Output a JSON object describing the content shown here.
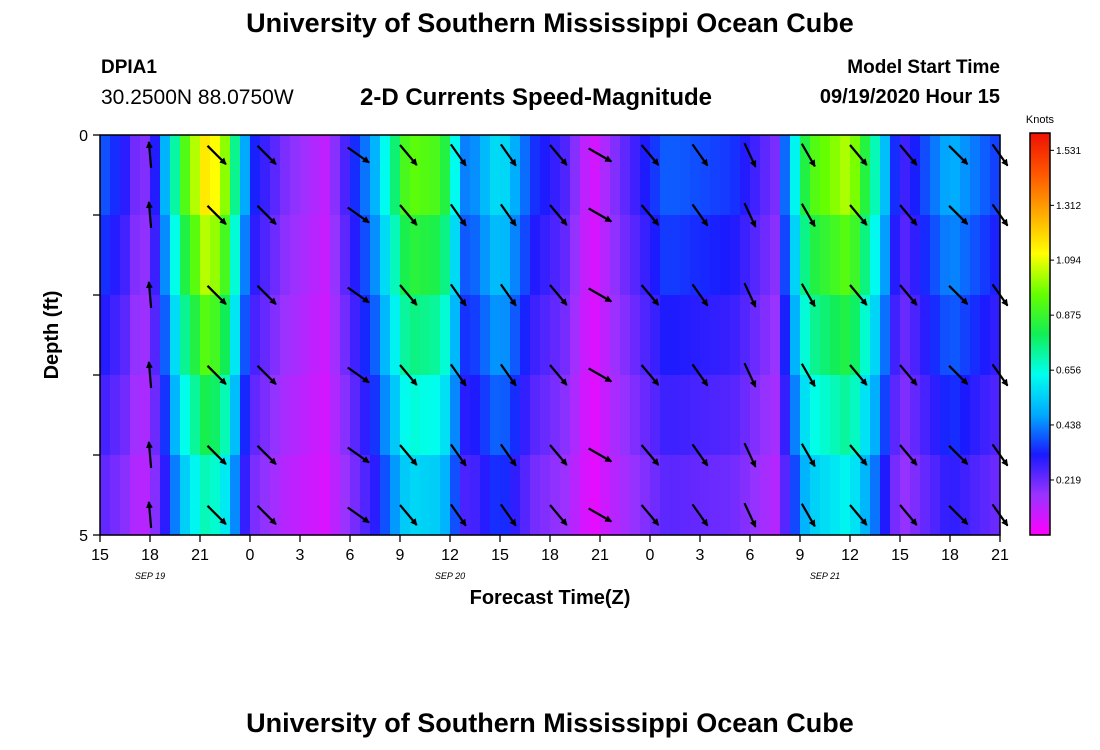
{
  "title": "University of Southern Mississippi Ocean Cube",
  "footer_title": "University of Southern Mississippi Ocean Cube",
  "station": {
    "id": "DPIA1",
    "coords": "30.2500N 88.0750W"
  },
  "subtitle": "2-D Currents Speed-Magnitude",
  "model_start": {
    "label": "Model Start Time",
    "value": "09/19/2020 Hour 15"
  },
  "chart_data": {
    "type": "heatmap",
    "xlabel": "Forecast Time(Z)",
    "ylabel": "Depth (ft)",
    "x_tick_labels": [
      "15",
      "18",
      "21",
      "0",
      "3",
      "6",
      "9",
      "12",
      "15",
      "18",
      "21",
      "0",
      "3",
      "6",
      "9",
      "12",
      "15",
      "18",
      "21"
    ],
    "date_labels": [
      {
        "text": "SEP 19",
        "tick_index": 1
      },
      {
        "text": "SEP 20",
        "tick_index": 7
      },
      {
        "text": "SEP 21",
        "tick_index": 14.5
      }
    ],
    "xlim_hours": [
      0,
      54
    ],
    "ylim_ft": [
      0,
      5
    ],
    "y_tick_labels": [
      {
        "value": 0,
        "label": "0"
      },
      {
        "value": 1,
        "label": ""
      },
      {
        "value": 2,
        "label": ""
      },
      {
        "value": 3,
        "label": ""
      },
      {
        "value": 4,
        "label": ""
      },
      {
        "value": 5,
        "label": "5"
      }
    ],
    "colorbar": {
      "unit": "Knots",
      "tick_labels": [
        "1.531",
        "1.312",
        "1.094",
        "0.875",
        "0.656",
        "0.438",
        "0.219"
      ],
      "vmin": 0.0,
      "vmax": 1.6,
      "stops": [
        "#ff00ff",
        "#9933ff",
        "#1a1aff",
        "#00aaff",
        "#00ffee",
        "#11ee55",
        "#66ff00",
        "#ffff00",
        "#ffaa00",
        "#ff5500",
        "#ee1100"
      ]
    },
    "depth_layers_ft": [
      0.25,
      1.0,
      2.0,
      3.0,
      4.0,
      4.75
    ],
    "speed_profile": [
      {
        "hour": 0.0,
        "speed": 0.4
      },
      {
        "hour": 1.5,
        "speed": 0.3
      },
      {
        "hour": 2.5,
        "speed": 0.15
      },
      {
        "hour": 3.5,
        "speed": 0.35
      },
      {
        "hour": 5.0,
        "speed": 0.9
      },
      {
        "hour": 6.5,
        "speed": 1.2
      },
      {
        "hour": 7.5,
        "speed": 1.0
      },
      {
        "hour": 9.0,
        "speed": 0.35
      },
      {
        "hour": 11.0,
        "speed": 0.2
      },
      {
        "hour": 13.5,
        "speed": 0.1
      },
      {
        "hour": 16.5,
        "speed": 0.5
      },
      {
        "hour": 18.5,
        "speed": 0.95
      },
      {
        "hour": 20.5,
        "speed": 0.9
      },
      {
        "hour": 22.0,
        "speed": 0.4
      },
      {
        "hour": 24.0,
        "speed": 0.6
      },
      {
        "hour": 26.0,
        "speed": 0.35
      },
      {
        "hour": 28.0,
        "speed": 0.25
      },
      {
        "hour": 29.5,
        "speed": 0.05
      },
      {
        "hour": 31.0,
        "speed": 0.2
      },
      {
        "hour": 34.0,
        "speed": 0.4
      },
      {
        "hour": 38.0,
        "speed": 0.35
      },
      {
        "hour": 40.5,
        "speed": 0.2
      },
      {
        "hour": 42.5,
        "speed": 0.9
      },
      {
        "hour": 45.0,
        "speed": 1.05
      },
      {
        "hour": 46.5,
        "speed": 0.7
      },
      {
        "hour": 48.0,
        "speed": 0.25
      },
      {
        "hour": 51.0,
        "speed": 0.5
      },
      {
        "hour": 54.0,
        "speed": 0.35
      }
    ],
    "vectors": [
      {
        "hour": 3.0,
        "angle_deg": 95
      },
      {
        "hour": 7.0,
        "angle_deg": -45
      },
      {
        "hour": 10.0,
        "angle_deg": -45
      },
      {
        "hour": 15.5,
        "angle_deg": -35
      },
      {
        "hour": 18.5,
        "angle_deg": -50
      },
      {
        "hour": 21.5,
        "angle_deg": -55
      },
      {
        "hour": 24.5,
        "angle_deg": -55
      },
      {
        "hour": 27.5,
        "angle_deg": -50
      },
      {
        "hour": 30.0,
        "angle_deg": -30
      },
      {
        "hour": 33.0,
        "angle_deg": -50
      },
      {
        "hour": 36.0,
        "angle_deg": -55
      },
      {
        "hour": 39.0,
        "angle_deg": -65
      },
      {
        "hour": 42.5,
        "angle_deg": -60
      },
      {
        "hour": 45.5,
        "angle_deg": -50
      },
      {
        "hour": 48.5,
        "angle_deg": -50
      },
      {
        "hour": 51.5,
        "angle_deg": -45
      },
      {
        "hour": 54.0,
        "angle_deg": -55
      }
    ]
  }
}
